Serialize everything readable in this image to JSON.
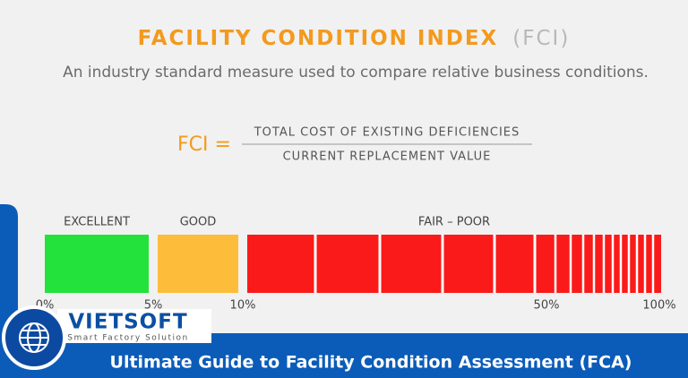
{
  "header": {
    "title": "FACILITY CONDITION INDEX",
    "title_suffix": "(FCI)",
    "subtitle": "An industry standard measure used to compare relative business conditions."
  },
  "formula": {
    "lhs": "FCI =",
    "numerator": "TOTAL COST OF EXISTING DEFICIENCIES",
    "denominator": "CURRENT REPLACEMENT VALUE"
  },
  "scale": {
    "segments": [
      {
        "label": "EXCELLENT"
      },
      {
        "label": "GOOD"
      },
      {
        "label": "FAIR – POOR"
      }
    ],
    "ticks": [
      "0%",
      "5%",
      "10%",
      "50%",
      "100%"
    ]
  },
  "logo": {
    "name": "VIETSOFT",
    "tagline": "Smart Factory Solution"
  },
  "banner": {
    "text": "Ultimate Guide to Facility Condition Assessment (FCA)"
  }
}
